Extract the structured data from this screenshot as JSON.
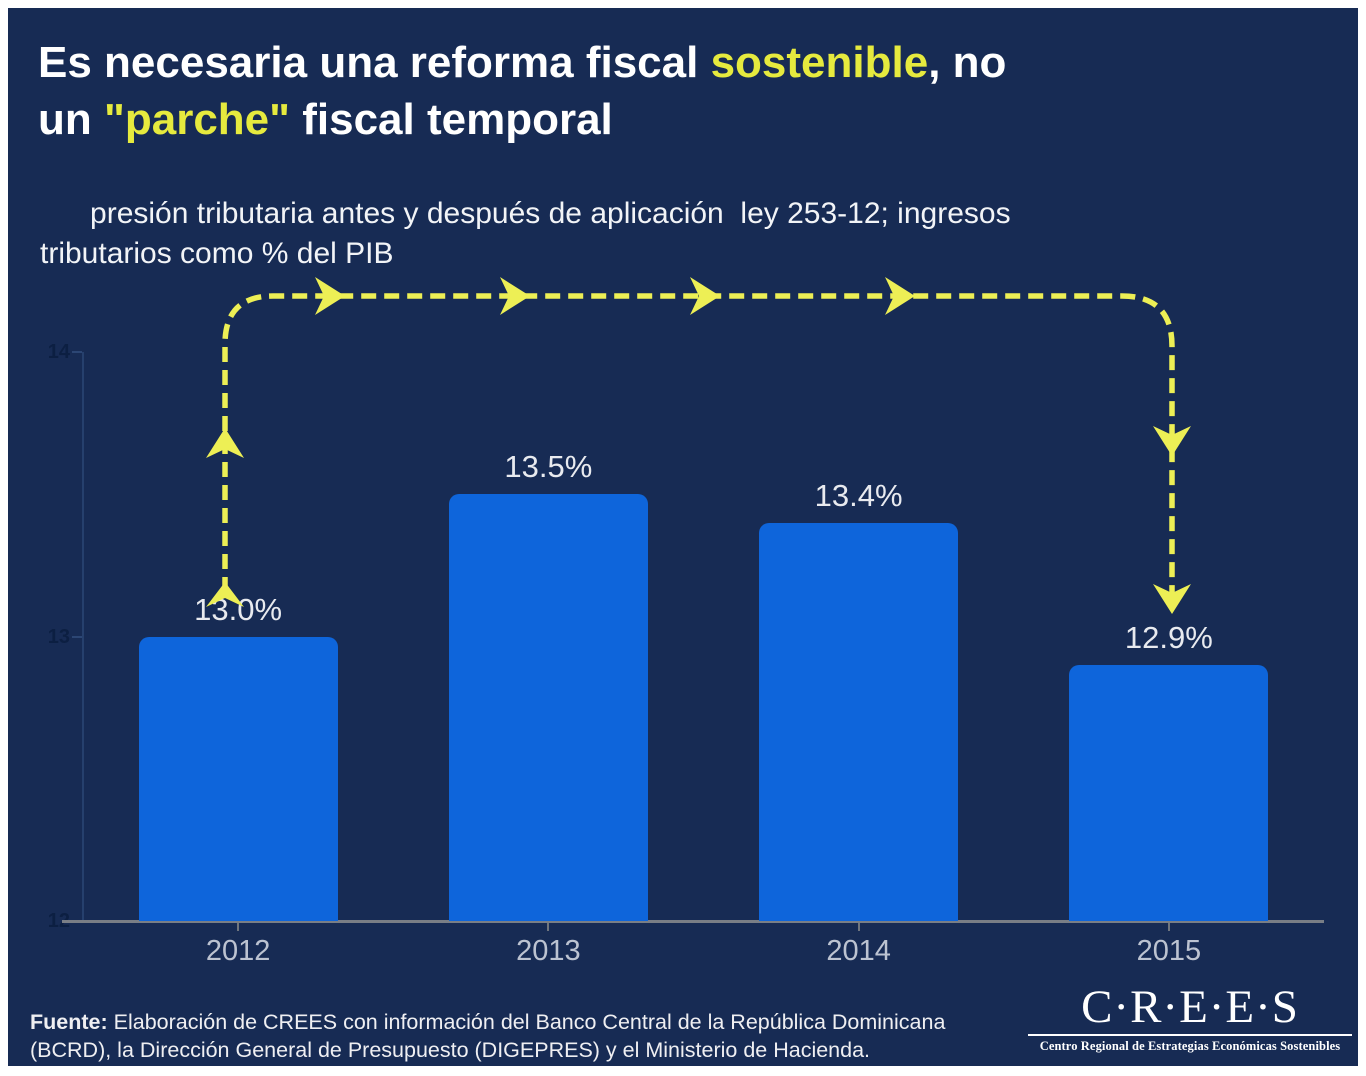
{
  "slide": {
    "title": {
      "line1_pre": "Es necesaria una reforma fiscal ",
      "line1_highlight": "sostenible",
      "line1_post": ", no",
      "line2_pre": "un ",
      "line2_highlight": "\"parche\"",
      "line2_post": " fiscal temporal"
    },
    "subtitle_line1": "presión tributaria antes y después de aplicación  ley 253-12; ingresos",
    "subtitle_line2": "tributarios como % del PIB",
    "colors": {
      "background": "#172B54",
      "bar_blue": "#0E65DB",
      "arrow_yellow": "#EDEF55",
      "title_highlight_yellow": "#E6EA3E"
    },
    "footer": {
      "source_label": "Fuente:",
      "source_line1": " Elaboración de CREES con información del Banco Central de la República Dominicana",
      "source_line2": "(BCRD), la Dirección General de Presupuesto (DIGEPRES) y el Ministerio de Hacienda."
    },
    "logo": {
      "name": "C·R·E·E·S",
      "tagline": "Centro Regional de Estrategias Económicas Sostenibles"
    }
  },
  "chart_data": {
    "type": "bar",
    "title": "presión tributaria antes y después de aplicación ley 253-12; ingresos tributarios como % del PIB",
    "categories": [
      "2012",
      "2013",
      "2014",
      "2015"
    ],
    "values": [
      13.0,
      13.5,
      13.4,
      12.9
    ],
    "value_labels": [
      "13.0%",
      "13.5%",
      "13.4%",
      "12.9%"
    ],
    "xlabel": "",
    "ylabel": "",
    "ylim": [
      12,
      14
    ],
    "yticks": [
      14,
      13,
      12
    ],
    "grid": false,
    "legend": false,
    "annotation": "dashed yellow arrow path from 2012 bar rising up, across the top, and descending to 2015 bar"
  }
}
